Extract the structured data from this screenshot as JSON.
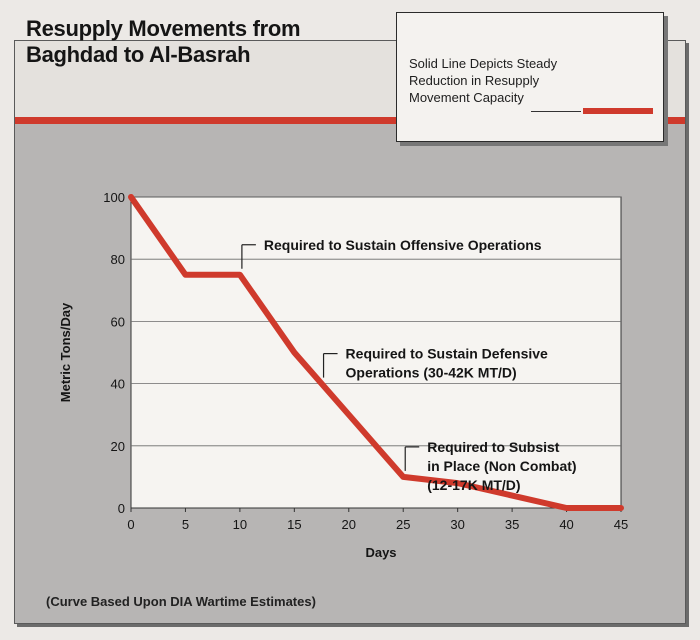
{
  "title_lines": [
    "Resupply Movements from",
    "Baghdad to Al-Basrah"
  ],
  "legend": {
    "lines": [
      "Solid Line Depicts Steady",
      "Reduction in Resupply",
      "Movement Capacity"
    ],
    "line_color": "#cf3a2c"
  },
  "footnote": "(Curve Based Upon DIA Wartime Estimates)",
  "chart_data": {
    "type": "line",
    "xlabel": "Days",
    "ylabel": "Metric Tons/Day",
    "xlim": [
      0,
      45
    ],
    "ylim": [
      0,
      100
    ],
    "x_ticks": [
      0,
      5,
      10,
      15,
      20,
      25,
      30,
      35,
      40,
      45
    ],
    "y_ticks": [
      0,
      20,
      40,
      60,
      80,
      100
    ],
    "grid": "horizontal",
    "series": [
      {
        "color": "#cf3a2c",
        "x": [
          0,
          5,
          10,
          15,
          20,
          25,
          30,
          35,
          40,
          45
        ],
        "y": [
          100,
          75,
          75,
          50,
          30,
          10,
          8,
          4,
          0,
          0
        ]
      }
    ],
    "annotations": [
      {
        "lines": [
          "Required to Sustain Offensive Operations"
        ],
        "anchor": [
          10,
          75
        ]
      },
      {
        "lines": [
          "Required to Sustain Defensive",
          "Operations (30-42K MT/D)"
        ],
        "anchor": [
          17.5,
          40
        ]
      },
      {
        "lines": [
          "Required to Subsist",
          "in Place (Non Combat)",
          "(12-17K MT/D)"
        ],
        "anchor": [
          25,
          10
        ]
      }
    ]
  }
}
